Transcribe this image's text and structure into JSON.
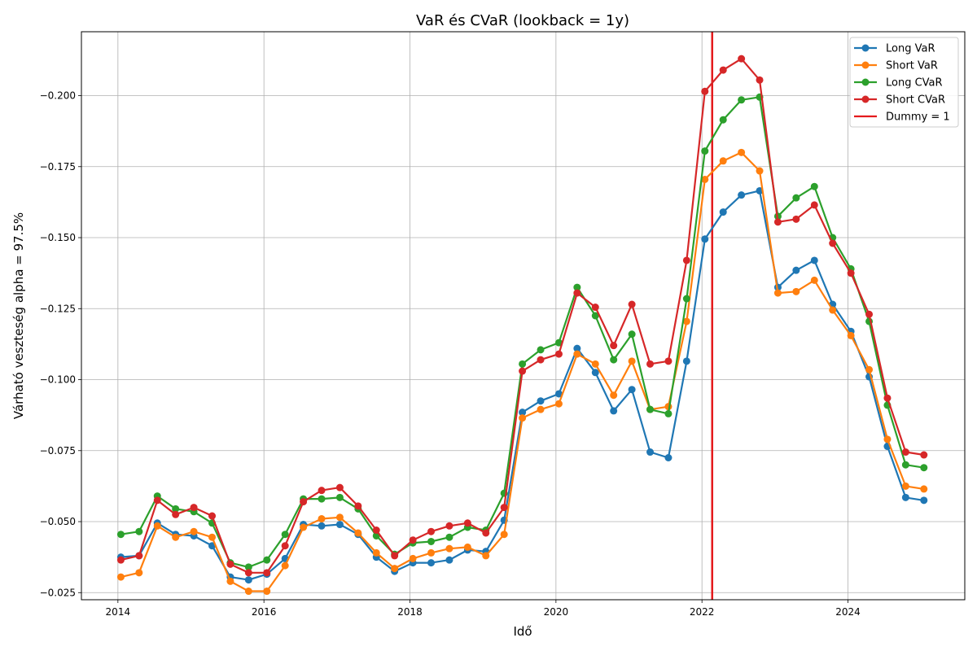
{
  "chart_data": {
    "type": "line",
    "title": "VaR és CVaR (lookback = 1y)",
    "xlabel": "Idő",
    "ylabel": "Várható veszteség alpha = 97.5%",
    "xlim": [
      2013.5,
      2025.6
    ],
    "ylim": [
      -0.0225,
      -0.2225
    ],
    "y_inverted": true,
    "grid": true,
    "legend_position": "top-right",
    "x_ticks": [
      2014,
      2016,
      2018,
      2020,
      2022,
      2024
    ],
    "x_tick_labels": [
      "2014",
      "2016",
      "2018",
      "2020",
      "2022",
      "2024"
    ],
    "y_ticks": [
      -0.025,
      -0.05,
      -0.075,
      -0.1,
      -0.125,
      -0.15,
      -0.175,
      -0.2
    ],
    "y_tick_labels": [
      "−0.025",
      "−0.050",
      "−0.075",
      "−0.100",
      "−0.125",
      "−0.150",
      "−0.175",
      "−0.200"
    ],
    "x": [
      2014.04,
      2014.29,
      2014.54,
      2014.79,
      2015.04,
      2015.29,
      2015.54,
      2015.79,
      2016.04,
      2016.29,
      2016.54,
      2016.79,
      2017.04,
      2017.29,
      2017.54,
      2017.79,
      2018.04,
      2018.29,
      2018.54,
      2018.79,
      2019.04,
      2019.29,
      2019.54,
      2019.79,
      2020.04,
      2020.29,
      2020.54,
      2020.79,
      2021.04,
      2021.29,
      2021.54,
      2021.79,
      2022.04,
      2022.29,
      2022.54,
      2022.79,
      2023.04,
      2023.29,
      2023.54,
      2023.79,
      2024.04,
      2024.29,
      2024.54,
      2024.79,
      2025.04
    ],
    "series": [
      {
        "name": "Long VaR",
        "color": "#1f77b4",
        "values": [
          -0.0375,
          -0.038,
          -0.0495,
          -0.0455,
          -0.045,
          -0.0415,
          -0.0305,
          -0.0295,
          -0.0315,
          -0.037,
          -0.049,
          -0.0485,
          -0.049,
          -0.0455,
          -0.0375,
          -0.0325,
          -0.0355,
          -0.0355,
          -0.0365,
          -0.04,
          -0.0395,
          -0.0505,
          -0.0885,
          -0.0925,
          -0.095,
          -0.111,
          -0.1025,
          -0.089,
          -0.0965,
          -0.0745,
          -0.0725,
          -0.1065,
          -0.1495,
          -0.159,
          -0.165,
          -0.1665,
          -0.1325,
          -0.1385,
          -0.142,
          -0.1265,
          -0.117,
          -0.101,
          -0.0765,
          -0.0585,
          -0.0575
        ]
      },
      {
        "name": "Short VaR",
        "color": "#ff7f0e",
        "values": [
          -0.0305,
          -0.032,
          -0.0485,
          -0.0445,
          -0.0465,
          -0.0445,
          -0.029,
          -0.0255,
          -0.0255,
          -0.0345,
          -0.048,
          -0.051,
          -0.0515,
          -0.046,
          -0.039,
          -0.0335,
          -0.037,
          -0.039,
          -0.0405,
          -0.041,
          -0.038,
          -0.0455,
          -0.0865,
          -0.0895,
          -0.0915,
          -0.109,
          -0.1055,
          -0.0945,
          -0.1065,
          -0.0895,
          -0.0905,
          -0.1205,
          -0.1705,
          -0.177,
          -0.18,
          -0.1735,
          -0.1305,
          -0.131,
          -0.135,
          -0.1245,
          -0.1155,
          -0.1035,
          -0.079,
          -0.0625,
          -0.0615
        ]
      },
      {
        "name": "Long CVaR",
        "color": "#2ca02c",
        "values": [
          -0.0455,
          -0.0465,
          -0.059,
          -0.0545,
          -0.0535,
          -0.0495,
          -0.0355,
          -0.034,
          -0.0365,
          -0.0455,
          -0.058,
          -0.058,
          -0.0585,
          -0.0545,
          -0.045,
          -0.0385,
          -0.0425,
          -0.043,
          -0.0445,
          -0.048,
          -0.047,
          -0.06,
          -0.1055,
          -0.1105,
          -0.113,
          -0.1325,
          -0.1225,
          -0.107,
          -0.116,
          -0.0895,
          -0.088,
          -0.1285,
          -0.1805,
          -0.1915,
          -0.1985,
          -0.1995,
          -0.1575,
          -0.164,
          -0.168,
          -0.15,
          -0.139,
          -0.1205,
          -0.091,
          -0.07,
          -0.069
        ]
      },
      {
        "name": "Short CVaR",
        "color": "#d62728",
        "values": [
          -0.0365,
          -0.038,
          -0.0575,
          -0.0525,
          -0.055,
          -0.052,
          -0.035,
          -0.032,
          -0.032,
          -0.0415,
          -0.057,
          -0.061,
          -0.062,
          -0.0555,
          -0.047,
          -0.038,
          -0.0435,
          -0.0465,
          -0.0485,
          -0.0495,
          -0.046,
          -0.055,
          -0.103,
          -0.107,
          -0.109,
          -0.1305,
          -0.1255,
          -0.112,
          -0.1265,
          -0.1055,
          -0.1065,
          -0.142,
          -0.2015,
          -0.209,
          -0.213,
          -0.2055,
          -0.1555,
          -0.1565,
          -0.1615,
          -0.148,
          -0.1375,
          -0.123,
          -0.0935,
          -0.0745,
          -0.0735
        ]
      }
    ],
    "vline": {
      "name": "Dummy = 1",
      "x": 2022.14,
      "color": "#e41a1c"
    }
  }
}
